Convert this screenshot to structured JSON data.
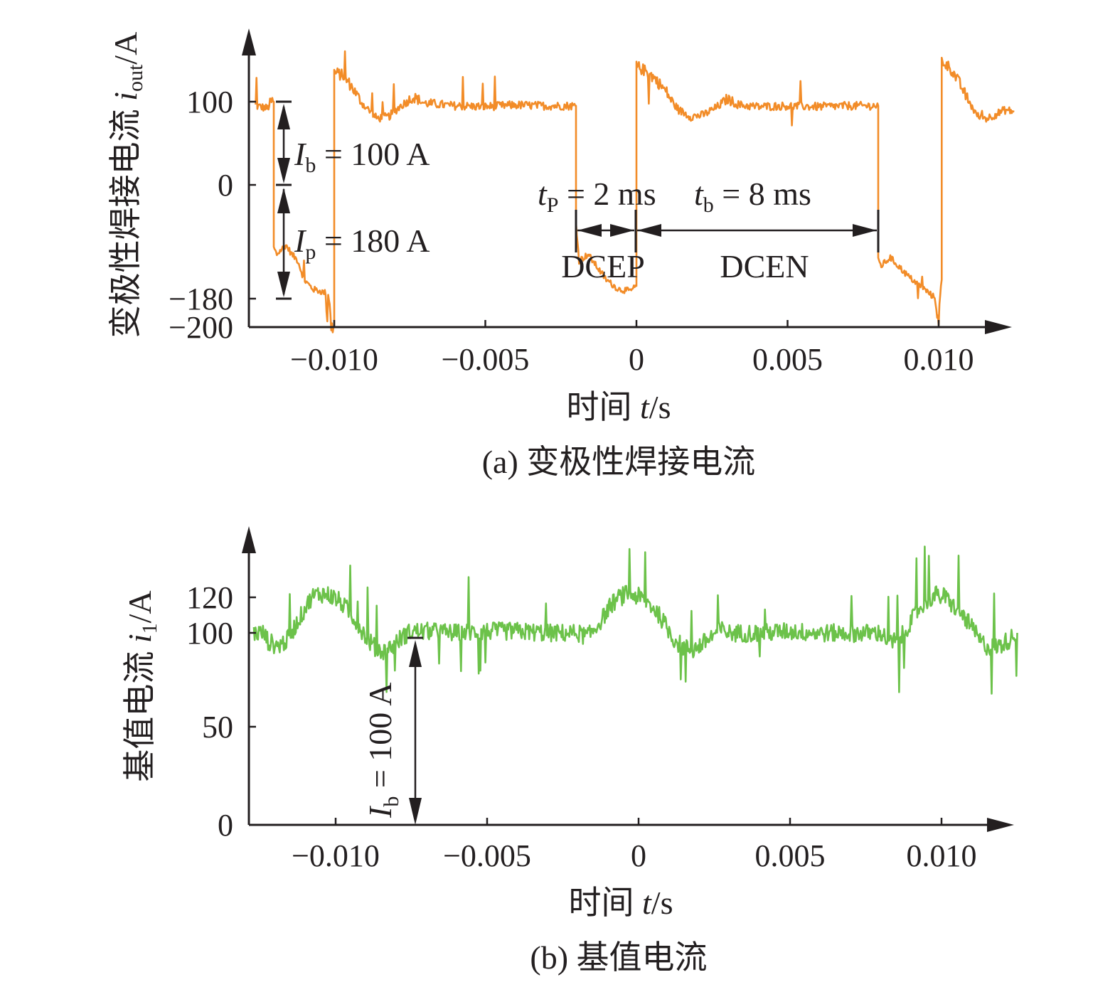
{
  "chart_data": [
    {
      "id": "a",
      "type": "line",
      "caption": "(a) 变极性焊接电流",
      "xlabel": "时间 t/s",
      "ylabel": "变极性焊接电流 i_out/A",
      "ylabel_parts": {
        "main": "变极性焊接电流 ",
        "var": "i",
        "sub": "out",
        "unit": "/A"
      },
      "xlabel_parts": {
        "main": "时间 ",
        "var": "t",
        "unit": "/s"
      },
      "x_ticks": [
        -0.01,
        -0.005,
        0,
        0.005,
        0.01
      ],
      "x_tick_labels": [
        "−0.010",
        "−0.005",
        "0",
        "0.005",
        "0.010"
      ],
      "y_ticks": [
        100,
        0,
        -180,
        -200
      ],
      "y_tick_labels": [
        "100",
        "0",
        "−180",
        "−200"
      ],
      "xlim": [
        -0.0128,
        0.0125
      ],
      "ylim": [
        -200,
        150
      ],
      "grid": false,
      "color": "#f28c28",
      "series": [
        {
          "name": "i_out",
          "points": [
            [
              -0.0126,
              95
            ],
            [
              -0.0122,
              92
            ],
            [
              -0.0121,
              100
            ],
            [
              -0.012,
              100
            ],
            [
              -0.012,
              -100
            ],
            [
              -0.0119,
              -110
            ],
            [
              -0.0116,
              -95
            ],
            [
              -0.0114,
              -110
            ],
            [
              -0.0112,
              -120
            ],
            [
              -0.011,
              -150
            ],
            [
              -0.0107,
              -165
            ],
            [
              -0.0102,
              -172
            ],
            [
              -0.0101,
              -200
            ],
            [
              -0.01,
              -200
            ],
            [
              -0.01,
              125
            ],
            [
              -0.0097,
              122
            ],
            [
              -0.0094,
              112
            ],
            [
              -0.009,
              95
            ],
            [
              -0.0086,
              80
            ],
            [
              -0.0082,
              82
            ],
            [
              -0.0078,
              95
            ],
            [
              -0.0074,
              104
            ],
            [
              -0.007,
              98
            ],
            [
              -0.006,
              95
            ],
            [
              -0.005,
              94
            ],
            [
              -0.004,
              96
            ],
            [
              -0.003,
              95
            ],
            [
              -0.0021,
              95
            ],
            [
              -0.002,
              95
            ],
            [
              -0.002,
              -60
            ],
            [
              -0.0019,
              -120
            ],
            [
              -0.0016,
              -110
            ],
            [
              -0.0013,
              -130
            ],
            [
              -0.001,
              -150
            ],
            [
              -0.0006,
              -165
            ],
            [
              -0.0002,
              -168
            ],
            [
              0.0,
              -160
            ],
            [
              0.0,
              130
            ],
            [
              0.0003,
              126
            ],
            [
              0.0006,
              120
            ],
            [
              0.001,
              108
            ],
            [
              0.0014,
              90
            ],
            [
              0.0018,
              82
            ],
            [
              0.0022,
              84
            ],
            [
              0.0026,
              92
            ],
            [
              0.003,
              102
            ],
            [
              0.0034,
              96
            ],
            [
              0.004,
              94
            ],
            [
              0.005,
              95
            ],
            [
              0.006,
              94
            ],
            [
              0.007,
              95
            ],
            [
              0.0079,
              95
            ],
            [
              0.008,
              95
            ],
            [
              0.008,
              -120
            ],
            [
              0.0081,
              -128
            ],
            [
              0.0084,
              -115
            ],
            [
              0.0087,
              -130
            ],
            [
              0.009,
              -145
            ],
            [
              0.0094,
              -160
            ],
            [
              0.0097,
              -172
            ],
            [
              0.0099,
              -180
            ],
            [
              0.01,
              -200
            ],
            [
              0.0101,
              -150
            ],
            [
              0.0101,
              135
            ],
            [
              0.0104,
              128
            ],
            [
              0.0107,
              115
            ],
            [
              0.011,
              100
            ],
            [
              0.0113,
              82
            ],
            [
              0.0116,
              80
            ],
            [
              0.0119,
              85
            ],
            [
              0.0122,
              90
            ],
            [
              0.0125,
              88
            ]
          ]
        }
      ],
      "annotations": {
        "ib_label": {
          "var": "I",
          "sub": "b",
          "text": " = 100 A"
        },
        "ip_label": {
          "var": "I",
          "sub": "p",
          "text": " = 180 A"
        },
        "tp_label": {
          "var": "t",
          "sub": "P",
          "text": " = 2 ms"
        },
        "tb_label": {
          "var": "t",
          "sub": "b",
          "text": " = 8 ms"
        },
        "dcep": "DCEP",
        "dcen": "DCEN",
        "ib_span": [
          0,
          100
        ],
        "ip_span": [
          -180,
          0
        ],
        "tp_span": [
          -0.002,
          0
        ],
        "tb_span": [
          0,
          0.008
        ]
      }
    },
    {
      "id": "b",
      "type": "line",
      "caption": "(b) 基值电流",
      "xlabel": "时间 t/s",
      "ylabel": "基值电流 i_1/A",
      "ylabel_parts": {
        "main": "基值电流 ",
        "var": "i",
        "sub": "1",
        "unit": "/A"
      },
      "xlabel_parts": {
        "main": "时间 ",
        "var": "t",
        "unit": "/s"
      },
      "x_ticks": [
        -0.01,
        -0.005,
        0,
        0.005,
        0.01
      ],
      "x_tick_labels": [
        "−0.010",
        "−0.005",
        "0",
        "0.005",
        "0.010"
      ],
      "y_ticks": [
        0,
        50,
        100,
        120
      ],
      "y_tick_labels": [
        "0",
        "50",
        "100",
        "120"
      ],
      "xlim": [
        -0.0128,
        0.0125
      ],
      "ylim": [
        0,
        140
      ],
      "grid": false,
      "color": "#6cc24a",
      "series": [
        {
          "name": "i_1",
          "points": [
            [
              -0.0127,
              100
            ],
            [
              -0.0124,
              100
            ],
            [
              -0.0122,
              95
            ],
            [
              -0.0119,
              93
            ],
            [
              -0.0116,
              96
            ],
            [
              -0.0114,
              102
            ],
            [
              -0.0112,
              108
            ],
            [
              -0.011,
              114
            ],
            [
              -0.0108,
              120
            ],
            [
              -0.0105,
              122
            ],
            [
              -0.0102,
              121
            ],
            [
              -0.0099,
              118
            ],
            [
              -0.0096,
              113
            ],
            [
              -0.0093,
              106
            ],
            [
              -0.009,
              98
            ],
            [
              -0.0087,
              92
            ],
            [
              -0.0084,
              90
            ],
            [
              -0.0081,
              93
            ],
            [
              -0.0078,
              98
            ],
            [
              -0.0075,
              101
            ],
            [
              -0.007,
              101
            ],
            [
              -0.006,
              100
            ],
            [
              -0.005,
              101
            ],
            [
              -0.004,
              101
            ],
            [
              -0.003,
              100
            ],
            [
              -0.002,
              100
            ],
            [
              -0.0017,
              98
            ],
            [
              -0.0015,
              101
            ],
            [
              -0.0012,
              108
            ],
            [
              -0.0009,
              116
            ],
            [
              -0.0006,
              120
            ],
            [
              -0.0003,
              122
            ],
            [
              0.0,
              120
            ],
            [
              0.0003,
              117
            ],
            [
              0.0006,
              112
            ],
            [
              0.0009,
              104
            ],
            [
              0.0012,
              96
            ],
            [
              0.0015,
              92
            ],
            [
              0.0018,
              91
            ],
            [
              0.0021,
              94
            ],
            [
              0.0024,
              98
            ],
            [
              0.0027,
              102
            ],
            [
              0.003,
              100
            ],
            [
              0.004,
              100
            ],
            [
              0.005,
              101
            ],
            [
              0.006,
              100
            ],
            [
              0.007,
              100
            ],
            [
              0.008,
              100
            ],
            [
              0.0083,
              95
            ],
            [
              0.0086,
              96
            ],
            [
              0.0089,
              104
            ],
            [
              0.0092,
              112
            ],
            [
              0.0095,
              118
            ],
            [
              0.0098,
              121
            ],
            [
              0.0101,
              120
            ],
            [
              0.0104,
              115
            ],
            [
              0.0107,
              110
            ],
            [
              0.011,
              103
            ],
            [
              0.0113,
              95
            ],
            [
              0.0116,
              92
            ],
            [
              0.0119,
              93
            ],
            [
              0.0122,
              96
            ],
            [
              0.0125,
              100
            ]
          ]
        }
      ],
      "annotations": {
        "ib_label": {
          "var": "I",
          "sub": "b",
          "text": " = 100 A"
        },
        "ib_span": [
          0,
          97
        ],
        "ib_x": -0.0074
      }
    }
  ]
}
